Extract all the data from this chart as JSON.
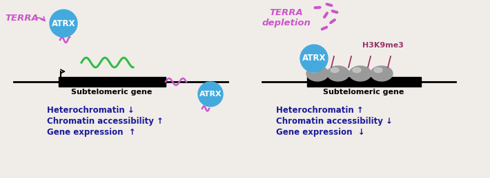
{
  "bg_color": "#f0ede8",
  "left_panel": {
    "terra_label": "TERRA",
    "terra_color": "#cc55cc",
    "atrx_label": "ATRX",
    "atrx_color": "#44aadd",
    "gene_label": "Subtelomeric gene",
    "wavy_color": "#33bb44",
    "text1": "Heterochromatin ↓",
    "text2": "Chromatin accessibility ↑",
    "text3": "Gene expression  ↑",
    "text_color": "#1a1a99"
  },
  "right_panel": {
    "terra_label": "TERRA\ndepletion",
    "terra_color": "#cc55cc",
    "atrx_label": "ATRX",
    "atrx_color": "#44aadd",
    "h3k9me3_label": "H3K9me3",
    "h3k9me3_color": "#993366",
    "gene_label": "Subtelomeric gene",
    "text1": "Heterochromatin ↑",
    "text2": "Chromatin accessibility ↓",
    "text3": "Gene expression  ↓",
    "text_color": "#1a1a99"
  }
}
